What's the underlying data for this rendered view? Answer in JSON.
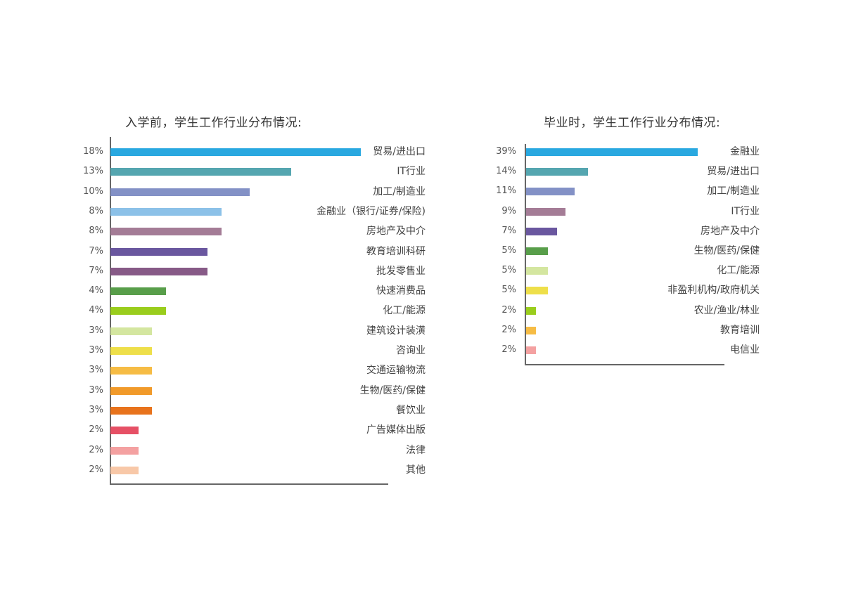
{
  "chart_data": [
    {
      "type": "bar",
      "orientation": "horizontal",
      "title": "入学前，学生工作行业分布情况:",
      "categories": [
        "贸易/进出口",
        "IT行业",
        "加工/制造业",
        "金融业（银行/证券/保险)",
        "房地产及中介",
        "教育培训科研",
        "批发零售业",
        "快速消费品",
        "化工/能源",
        "建筑设计装潢",
        "咨询业",
        "交通运输物流",
        "生物/医药/保健",
        "餐饮业",
        "广告媒体出版",
        "法律",
        "其他"
      ],
      "values": [
        18,
        13,
        10,
        8,
        8,
        7,
        7,
        4,
        4,
        3,
        3,
        3,
        3,
        3,
        2,
        2,
        2
      ],
      "value_labels": [
        "18%",
        "13%",
        "10%",
        "8%",
        "8%",
        "7%",
        "7%",
        "4%",
        "4%",
        "3%",
        "3%",
        "3%",
        "3%",
        "3%",
        "2%",
        "2%",
        "2%"
      ],
      "colors": [
        "#29a8e0",
        "#55a6b0",
        "#8391c6",
        "#8cc1e8",
        "#a47c96",
        "#6a579f",
        "#875a87",
        "#589e4a",
        "#9acd1d",
        "#d4e6a0",
        "#eedf4a",
        "#f6bc45",
        "#f19a2a",
        "#e8731c",
        "#e65065",
        "#f4a1a1",
        "#f8c8a8"
      ],
      "xlim": [
        0,
        20
      ],
      "grid": false
    },
    {
      "type": "bar",
      "orientation": "horizontal",
      "title": "毕业时，学生工作行业分布情况:",
      "categories": [
        "金融业",
        "贸易/进出口",
        "加工/制造业",
        "IT行业",
        "房地产及中介",
        "生物/医药/保健",
        "化工/能源",
        "非盈利机构/政府机关",
        "农业/渔业/林业",
        "教育培训",
        "电信业"
      ],
      "values": [
        39,
        14,
        11,
        9,
        7,
        5,
        5,
        5,
        2,
        2,
        2
      ],
      "value_labels": [
        "39%",
        "14%",
        "11%",
        "9%",
        "7%",
        "5%",
        "5%",
        "5%",
        "2%",
        "2%",
        "2%"
      ],
      "colors": [
        "#29a8e0",
        "#55a6b0",
        "#8391c6",
        "#a47c96",
        "#6a579f",
        "#589e4a",
        "#d4e6a0",
        "#eedf4a",
        "#9acd1d",
        "#f6bc45",
        "#f4a1a1"
      ],
      "xlim": [
        0,
        45
      ],
      "grid": false
    }
  ]
}
